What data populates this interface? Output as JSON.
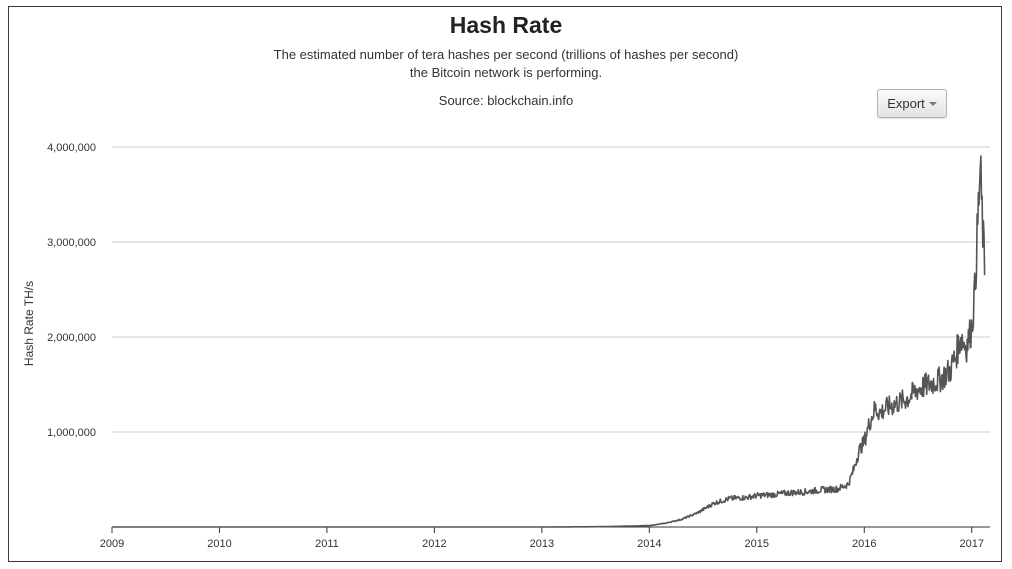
{
  "chart": {
    "title": "Hash Rate",
    "subtitle_line1": "The estimated number of tera hashes per second (trillions of hashes per second)",
    "subtitle_line2": "the Bitcoin network is performing.",
    "source": "Source: blockchain.info"
  },
  "toolbar": {
    "export_label": "Export"
  },
  "colors": {
    "series": "#555555",
    "grid": "#cccccc",
    "axis": "#333333"
  },
  "chart_data": {
    "type": "line",
    "title": "Hash Rate",
    "subtitle": "The estimated number of tera hashes per second (trillions of hashes per second) the Bitcoin network is performing.",
    "ylabel": "Hash Rate TH/s",
    "xlabel": "",
    "grid": true,
    "legend": "none",
    "ylim": [
      0,
      4000000
    ],
    "xlim": [
      2009.0,
      2017.17
    ],
    "y_ticks": [
      1000000,
      2000000,
      3000000,
      4000000
    ],
    "y_tick_labels": [
      "1,000,000",
      "2,000,000",
      "3,000,000",
      "4,000,000"
    ],
    "x_ticks": [
      2009,
      2010,
      2011,
      2012,
      2013,
      2014,
      2015,
      2016,
      2017
    ],
    "x_tick_labels": [
      "2009",
      "2010",
      "2011",
      "2012",
      "2013",
      "2014",
      "2015",
      "2016",
      "2017"
    ],
    "series": [
      {
        "x": [
          2009.0,
          2010.0,
          2011.0,
          2012.0,
          2013.0,
          2013.5,
          2013.75,
          2014.0,
          2014.15,
          2014.3,
          2014.45,
          2014.6,
          2014.75,
          2014.9,
          2015.0,
          2015.15,
          2015.3,
          2015.45,
          2015.6,
          2015.75,
          2015.85,
          2015.9,
          2015.95,
          2016.0,
          2016.05,
          2016.1,
          2016.15,
          2016.2,
          2016.3,
          2016.4,
          2016.5,
          2016.6,
          2016.7,
          2016.8,
          2016.85,
          2016.9,
          2016.95,
          2017.0,
          2017.03,
          2017.06,
          2017.08,
          2017.1,
          2017.12
        ],
        "y": [
          0,
          0,
          0,
          0,
          0,
          3000,
          8000,
          15000,
          40000,
          80000,
          150000,
          250000,
          300000,
          310000,
          330000,
          340000,
          360000,
          370000,
          390000,
          400000,
          450000,
          600000,
          800000,
          900000,
          1100000,
          1250000,
          1200000,
          1250000,
          1300000,
          1350000,
          1450000,
          1500000,
          1550000,
          1650000,
          1800000,
          2000000,
          1900000,
          2100000,
          2500000,
          3300000,
          3750000,
          3200000,
          2700000
        ]
      }
    ]
  }
}
